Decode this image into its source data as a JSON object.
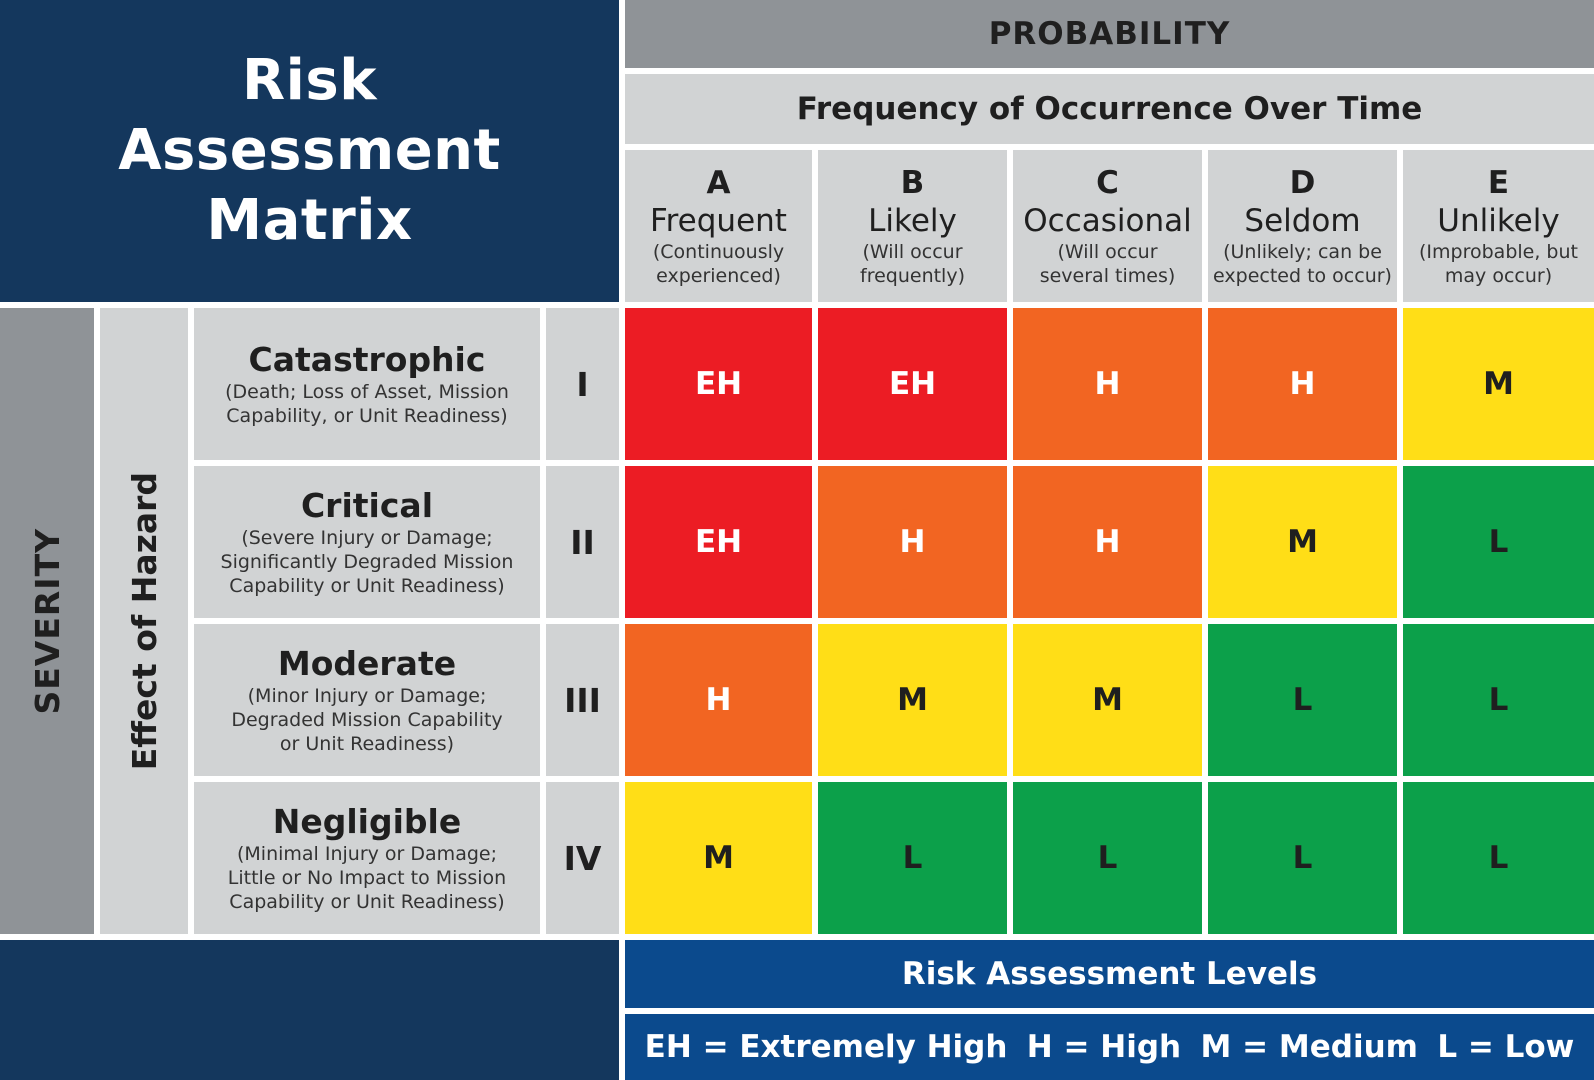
{
  "title": {
    "line1": "Risk",
    "line2": "Assessment",
    "line3": "Matrix"
  },
  "probability_label": "PROBABILITY",
  "frequency_label": "Frequency of Occurrence Over Time",
  "columns": [
    {
      "letter": "A",
      "name": "Frequent",
      "desc1": "(Continuously",
      "desc2": "experienced)"
    },
    {
      "letter": "B",
      "name": "Likely",
      "desc1": "(Will occur",
      "desc2": "frequently)"
    },
    {
      "letter": "C",
      "name": "Occasional",
      "desc1": "(Will occur",
      "desc2": "several times)"
    },
    {
      "letter": "D",
      "name": "Seldom",
      "desc1": "(Unlikely; can be",
      "desc2": "expected to occur)"
    },
    {
      "letter": "E",
      "name": "Unlikely",
      "desc1": "(Improbable, but",
      "desc2": "may occur)"
    }
  ],
  "severity_label": "SEVERITY",
  "effect_label": "Effect of Hazard",
  "rows": [
    {
      "name": "Catastrophic",
      "desc": [
        "(Death; Loss of Asset, Mission",
        "Capability, or Unit Readiness)"
      ],
      "roman": "I",
      "cells": [
        "EH",
        "EH",
        "H",
        "H",
        "M"
      ]
    },
    {
      "name": "Critical",
      "desc": [
        "(Severe Injury or Damage;",
        "Significantly Degraded Mission",
        "Capability or Unit Readiness)"
      ],
      "roman": "II",
      "cells": [
        "EH",
        "H",
        "H",
        "M",
        "L"
      ]
    },
    {
      "name": "Moderate",
      "desc": [
        "(Minor Injury or Damage;",
        "Degraded Mission Capability",
        "or Unit Readiness)"
      ],
      "roman": "III",
      "cells": [
        "H",
        "M",
        "M",
        "L",
        "L"
      ]
    },
    {
      "name": "Negligible",
      "desc": [
        "(Minimal Injury or Damage;",
        "Little or No Impact to Mission",
        "Capability or Unit Readiness)"
      ],
      "roman": "IV",
      "cells": [
        "M",
        "L",
        "L",
        "L",
        "L"
      ]
    }
  ],
  "level_colors": {
    "EH": "#ec1c24",
    "H": "#f26522",
    "M": "#ffde17",
    "L": "#0ca04a"
  },
  "level_text_colors": {
    "EH": "#ffffff",
    "H": "#ffffff",
    "M": "#1f1f1f",
    "L": "#1f1f1f"
  },
  "levels_title": "Risk Assessment Levels",
  "legend": [
    "EH = Extremely High",
    "H = High",
    "M = Medium",
    "L = Low"
  ]
}
